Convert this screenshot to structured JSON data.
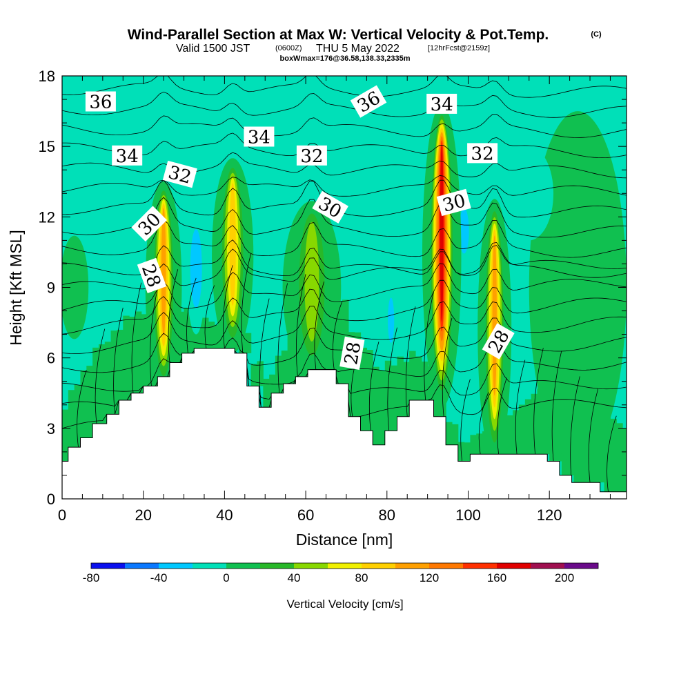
{
  "header": {
    "title": "Wind-Parallel Section at Max W: Vertical Velocity & Pot.Temp.",
    "copyright": "(C)",
    "valid_prefix": "Valid 1500 JST",
    "valid_zulu": "(0600Z)",
    "valid_date": "THU 5 May 2022",
    "forecast": "[12hrFcst@2159z]",
    "box_info": "boxWmax=176@36.58,138.33,2335m"
  },
  "chart_data": {
    "type": "heatmap",
    "title": "Wind-Parallel Section at Max W: Vertical Velocity & Pot.Temp.",
    "xlabel": "Distance [nm]",
    "ylabel": "Height [Kft MSL]",
    "xlim": [
      0,
      139
    ],
    "ylim": [
      0,
      18
    ],
    "x_ticks": [
      "0",
      "20",
      "40",
      "60",
      "80",
      "100",
      "120"
    ],
    "y_ticks": [
      "0",
      "3",
      "6",
      "9",
      "12",
      "15",
      "18"
    ],
    "background_level_color": "#00e0b8",
    "terrain_color": "#ffffff",
    "terrain_profile": [
      [
        0,
        1.6
      ],
      [
        1.5,
        1.6
      ],
      [
        1.5,
        2.2
      ],
      [
        4.5,
        2.2
      ],
      [
        4.5,
        2.6
      ],
      [
        7.5,
        2.6
      ],
      [
        7.5,
        3.2
      ],
      [
        11,
        3.2
      ],
      [
        11,
        3.6
      ],
      [
        14,
        3.6
      ],
      [
        14,
        4.2
      ],
      [
        17,
        4.2
      ],
      [
        17,
        4.5
      ],
      [
        20,
        4.5
      ],
      [
        20,
        4.8
      ],
      [
        23.5,
        4.8
      ],
      [
        23.5,
        5.2
      ],
      [
        26.5,
        5.2
      ],
      [
        26.5,
        5.8
      ],
      [
        29.5,
        5.8
      ],
      [
        29.5,
        6.2
      ],
      [
        32.5,
        6.2
      ],
      [
        32.5,
        6.4
      ],
      [
        42.5,
        6.4
      ],
      [
        42.5,
        6.2
      ],
      [
        45.5,
        6.2
      ],
      [
        45.5,
        4.8
      ],
      [
        48.5,
        4.8
      ],
      [
        48.5,
        3.9
      ],
      [
        51.5,
        3.9
      ],
      [
        51.5,
        4.5
      ],
      [
        54.5,
        4.5
      ],
      [
        54.5,
        4.9
      ],
      [
        57.5,
        4.9
      ],
      [
        57.5,
        5.2
      ],
      [
        60.5,
        5.2
      ],
      [
        60.5,
        5.5
      ],
      [
        67.5,
        5.5
      ],
      [
        67.5,
        4.9
      ],
      [
        70.5,
        4.9
      ],
      [
        70.5,
        3.5
      ],
      [
        73.5,
        3.5
      ],
      [
        73.5,
        2.9
      ],
      [
        76.5,
        2.9
      ],
      [
        76.5,
        2.3
      ],
      [
        79.5,
        2.3
      ],
      [
        79.5,
        2.9
      ],
      [
        82.5,
        2.9
      ],
      [
        82.5,
        3.5
      ],
      [
        85.5,
        3.5
      ],
      [
        85.5,
        4.2
      ],
      [
        91.5,
        4.2
      ],
      [
        91.5,
        3.5
      ],
      [
        94.5,
        3.5
      ],
      [
        94.5,
        2.3
      ],
      [
        97.5,
        2.3
      ],
      [
        97.5,
        1.6
      ],
      [
        100.5,
        1.6
      ],
      [
        100.5,
        1.9
      ],
      [
        119.5,
        1.9
      ],
      [
        119.5,
        1.6
      ],
      [
        122.5,
        1.6
      ],
      [
        122.5,
        1.0
      ],
      [
        125.5,
        1.0
      ],
      [
        125.5,
        0.7
      ],
      [
        132.5,
        0.7
      ],
      [
        132.5,
        0.3
      ],
      [
        139,
        0.3
      ],
      [
        139,
        0
      ]
    ],
    "updraft_columns": [
      {
        "x": 25,
        "base": 4.8,
        "top": 13.3,
        "peak": 110,
        "width": 2.8
      },
      {
        "x": 42,
        "base": 6.4,
        "top": 14.3,
        "peak": 95,
        "width": 3.2
      },
      {
        "x": 61.5,
        "base": 5.5,
        "top": 12.5,
        "peak": 55,
        "width": 4.5
      },
      {
        "x": 93.5,
        "base": 4.2,
        "top": 16.5,
        "peak": 176,
        "width": 3.0
      },
      {
        "x": 106.5,
        "base": 1.9,
        "top": 12.5,
        "peak": 115,
        "width": 2.6
      }
    ],
    "downdraft_regions": [
      {
        "x": 33,
        "y": 9.8,
        "peak": -55,
        "width": 2.4,
        "height": 2.8
      },
      {
        "x": 81,
        "y": 7.6,
        "peak": -50,
        "width": 1.3,
        "height": 1.6
      },
      {
        "x": 99,
        "y": 11.4,
        "peak": -50,
        "width": 2.0,
        "height": 1.6
      },
      {
        "x": 50,
        "y": 11.2,
        "peak": -28,
        "width": 7.0,
        "height": 2.2
      },
      {
        "x": 74,
        "y": 12.0,
        "peak": -28,
        "width": 8.0,
        "height": 2.2
      },
      {
        "x": 58,
        "y": 14.2,
        "peak": -25,
        "width": 10.0,
        "height": 1.0
      },
      {
        "x": 115,
        "y": 13.0,
        "peak": -25,
        "width": 6.0,
        "height": 2.0
      }
    ],
    "contour_labels": [
      {
        "text": "36",
        "x": 9.5,
        "y": 16.9,
        "angle": 0
      },
      {
        "text": "34",
        "x": 16,
        "y": 14.6,
        "angle": 0
      },
      {
        "text": "32",
        "x": 29,
        "y": 13.8,
        "angle": 15
      },
      {
        "text": "30",
        "x": 21.5,
        "y": 11.7,
        "angle": -45
      },
      {
        "text": "28",
        "x": 22,
        "y": 9.5,
        "angle": 70
      },
      {
        "text": "34",
        "x": 48.5,
        "y": 15.4,
        "angle": 0
      },
      {
        "text": "32",
        "x": 61.5,
        "y": 14.6,
        "angle": 0
      },
      {
        "text": "30",
        "x": 66,
        "y": 12.4,
        "angle": 30
      },
      {
        "text": "36",
        "x": 75.5,
        "y": 16.9,
        "angle": -30
      },
      {
        "text": "28",
        "x": 71.5,
        "y": 6.2,
        "angle": -80
      },
      {
        "text": "34",
        "x": 93.5,
        "y": 16.8,
        "angle": 0
      },
      {
        "text": "32",
        "x": 103.5,
        "y": 14.7,
        "angle": 0
      },
      {
        "text": "30",
        "x": 96.5,
        "y": 12.6,
        "angle": -15
      },
      {
        "text": "28",
        "x": 107.5,
        "y": 6.7,
        "angle": -60
      }
    ]
  },
  "colorbar": {
    "title": "Vertical Velocity [cm/s]",
    "tick_labels": [
      "-80",
      "-40",
      "0",
      "40",
      "80",
      "120",
      "160",
      "200"
    ],
    "tick_values": [
      -80,
      -40,
      0,
      40,
      80,
      120,
      160,
      200
    ],
    "levels": [
      -80,
      -60,
      -40,
      -20,
      0,
      20,
      40,
      60,
      80,
      100,
      120,
      140,
      160,
      180,
      200,
      220
    ],
    "colors": [
      "#0a10ee",
      "#0a78ff",
      "#00c8ff",
      "#00e0b8",
      "#10c050",
      "#28b828",
      "#88d800",
      "#f0f000",
      "#ffd000",
      "#ffa000",
      "#ff7800",
      "#ff3000",
      "#e00000",
      "#a01050",
      "#6a0a8a"
    ]
  }
}
